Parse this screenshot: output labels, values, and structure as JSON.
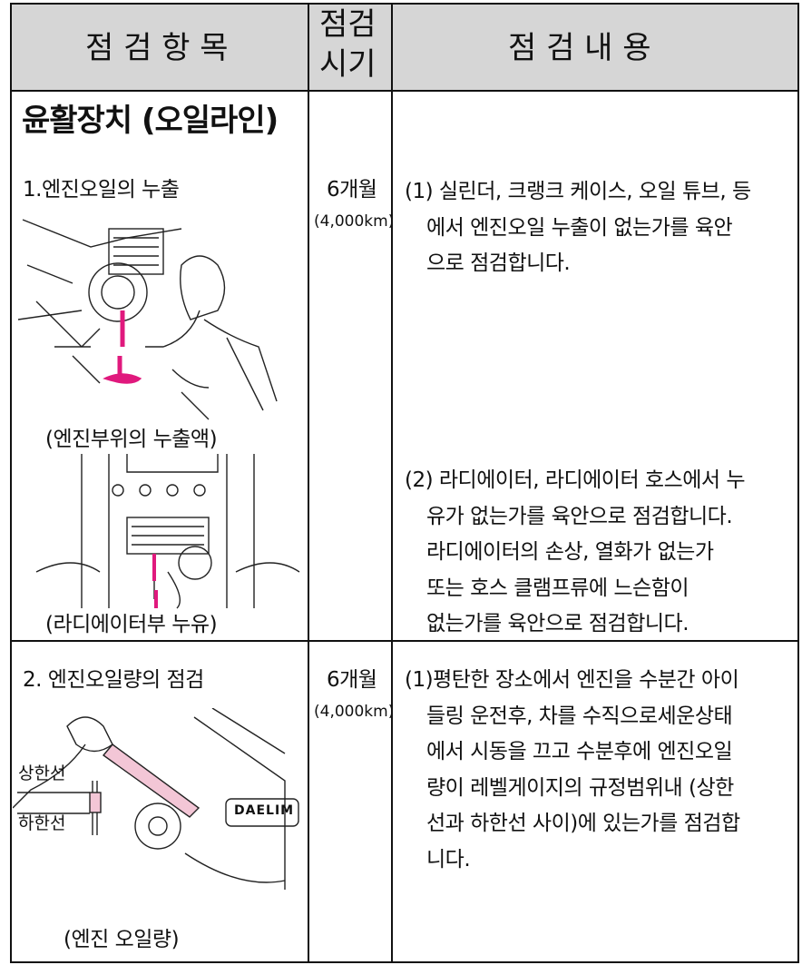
{
  "header": {
    "columns": [
      "점 검 항 목",
      [
        "점검",
        "시기"
      ],
      "점 검 내 용"
    ]
  },
  "rows": [
    {
      "section": "윤활장치 (오일라인)",
      "item": "1.엔진오일의 누출",
      "period": "6개월",
      "distance": "(4,000km)",
      "content": [
        [
          "(1) 실린더, 크랭크 케이스, 오일 튜브, 등",
          "에서 엔진오일 누출이 없는가를 육안",
          "으로 점검합니다."
        ],
        [
          "(2) 라디에이터, 라디에이터 호스에서 누",
          "유가 없는가를 육안으로 점검합니다.",
          "라디에이터의 손상, 열화가 없는가",
          "또는 호스 클램프류에 느슨함이",
          "없는가를 육안으로 점검합니다."
        ]
      ],
      "captions": [
        "(엔진부위의 누출액)",
        "(라디에이터부 누유)"
      ]
    },
    {
      "item": "2. 엔진오일량의 점검",
      "period": "6개월",
      "distance": "(4,000km)",
      "content": [
        [
          "(1)평탄한 장소에서 엔진을 수분간 아이",
          "들링 운전후, 차를 수직으로세운상태",
          "에서 시동을 끄고 수분후에 엔진오일",
          "량이 레벨게이지의 규정범위내 (상한",
          "선과 하한선 사이)에 있는가를 점검합",
          "니다."
        ]
      ],
      "labels": [
        "상한선",
        "하한선",
        "DAELIM"
      ],
      "captions": [
        "(엔진 오일량)"
      ]
    }
  ]
}
